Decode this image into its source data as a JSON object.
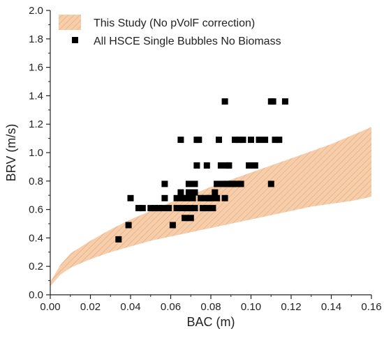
{
  "chart_data": {
    "type": "scatter",
    "xlabel": "BAC (m)",
    "ylabel": "BRV (m/s)",
    "xlim": [
      0,
      0.16
    ],
    "ylim": [
      0,
      2.0
    ],
    "x_ticks": [
      "0.00",
      "0.02",
      "0.04",
      "0.06",
      "0.08",
      "0.10",
      "0.12",
      "0.14",
      "0.16"
    ],
    "y_ticks": [
      "0.0",
      "0.2",
      "0.4",
      "0.6",
      "0.8",
      "1.0",
      "1.2",
      "1.4",
      "1.6",
      "1.8",
      "2.0"
    ],
    "legend_position": "top-left",
    "band": {
      "name": "This Study (No pVolF correction)",
      "color": "#f5c8a2",
      "hatch": true,
      "x": [
        0.0,
        0.005,
        0.01,
        0.02,
        0.03,
        0.04,
        0.05,
        0.06,
        0.07,
        0.08,
        0.09,
        0.1,
        0.11,
        0.12,
        0.13,
        0.14,
        0.15,
        0.16
      ],
      "lower": [
        0.06,
        0.14,
        0.19,
        0.25,
        0.3,
        0.34,
        0.38,
        0.41,
        0.44,
        0.47,
        0.5,
        0.53,
        0.56,
        0.59,
        0.62,
        0.64,
        0.66,
        0.69
      ],
      "upper": [
        0.09,
        0.21,
        0.29,
        0.38,
        0.46,
        0.53,
        0.59,
        0.65,
        0.7,
        0.76,
        0.81,
        0.86,
        0.91,
        0.96,
        1.01,
        1.06,
        1.12,
        1.18
      ]
    },
    "series": [
      {
        "name": "All HSCE Single Bubbles No Biomass",
        "marker": "square",
        "color": "#000000",
        "points": [
          [
            0.034,
            0.39
          ],
          [
            0.039,
            0.49
          ],
          [
            0.04,
            0.68
          ],
          [
            0.044,
            0.61
          ],
          [
            0.046,
            0.61
          ],
          [
            0.05,
            0.61
          ],
          [
            0.052,
            0.61
          ],
          [
            0.054,
            0.61
          ],
          [
            0.056,
            0.61
          ],
          [
            0.057,
            0.68
          ],
          [
            0.057,
            0.78
          ],
          [
            0.059,
            0.61
          ],
          [
            0.061,
            0.49
          ],
          [
            0.063,
            0.68
          ],
          [
            0.063,
            0.61
          ],
          [
            0.065,
            0.72
          ],
          [
            0.065,
            1.09
          ],
          [
            0.066,
            0.61
          ],
          [
            0.066,
            0.68
          ],
          [
            0.067,
            0.54
          ],
          [
            0.068,
            0.61
          ],
          [
            0.068,
            0.68
          ],
          [
            0.069,
            0.72
          ],
          [
            0.069,
            0.78
          ],
          [
            0.07,
            0.61
          ],
          [
            0.07,
            0.54
          ],
          [
            0.071,
            0.68
          ],
          [
            0.072,
            0.78
          ],
          [
            0.072,
            0.61
          ],
          [
            0.072,
            0.72
          ],
          [
            0.073,
            1.09
          ],
          [
            0.073,
            0.91
          ],
          [
            0.074,
            1.09
          ],
          [
            0.075,
            0.68
          ],
          [
            0.076,
            0.61
          ],
          [
            0.077,
            0.68
          ],
          [
            0.078,
            0.91
          ],
          [
            0.078,
            0.61
          ],
          [
            0.079,
            0.68
          ],
          [
            0.08,
            0.68
          ],
          [
            0.081,
            0.61
          ],
          [
            0.082,
            0.72
          ],
          [
            0.083,
            0.78
          ],
          [
            0.083,
            0.68
          ],
          [
            0.084,
            1.09
          ],
          [
            0.085,
            0.91
          ],
          [
            0.086,
            0.78
          ],
          [
            0.087,
            1.36
          ],
          [
            0.087,
            0.68
          ],
          [
            0.088,
            0.78
          ],
          [
            0.088,
            0.91
          ],
          [
            0.089,
            0.91
          ],
          [
            0.09,
            0.78
          ],
          [
            0.091,
            0.78
          ],
          [
            0.092,
            1.09
          ],
          [
            0.093,
            0.78
          ],
          [
            0.094,
            1.09
          ],
          [
            0.095,
            0.78
          ],
          [
            0.096,
            1.09
          ],
          [
            0.099,
            0.91
          ],
          [
            0.1,
            1.09
          ],
          [
            0.102,
            0.91
          ],
          [
            0.104,
            1.09
          ],
          [
            0.107,
            1.09
          ],
          [
            0.11,
            1.36
          ],
          [
            0.11,
            0.78
          ],
          [
            0.111,
            1.36
          ],
          [
            0.112,
            1.09
          ],
          [
            0.114,
            1.09
          ],
          [
            0.117,
            1.36
          ]
        ]
      }
    ]
  }
}
